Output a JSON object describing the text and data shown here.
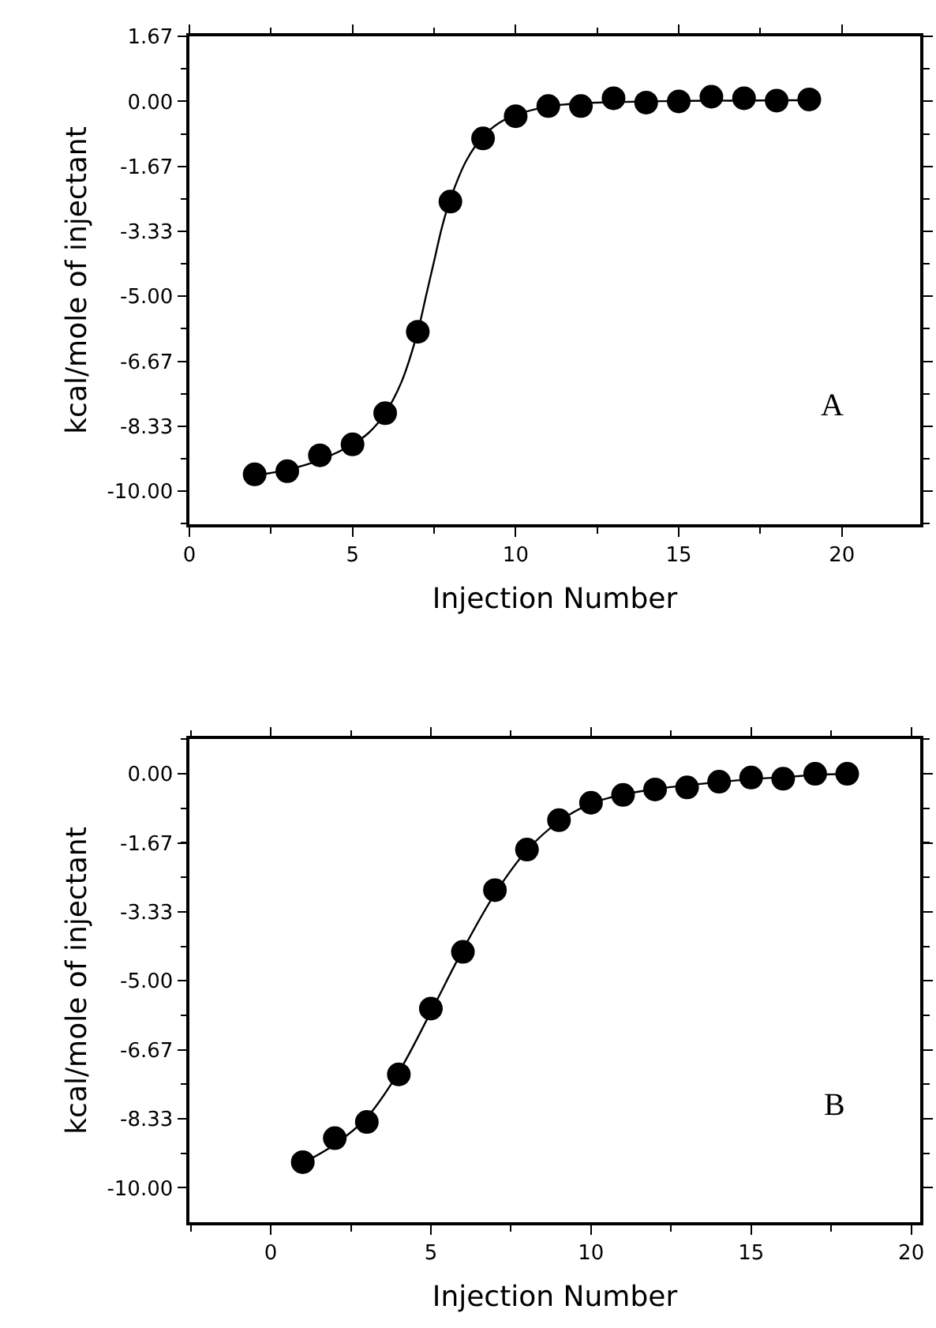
{
  "chart_data": [
    {
      "type": "scatter",
      "xlabel": "Injection Number",
      "ylabel": "kcal/mole of injectant",
      "annotations": [
        "A"
      ],
      "line_style": "solid",
      "x": [
        2,
        3,
        4,
        5,
        6,
        7,
        8,
        9,
        10,
        11,
        12,
        13,
        14,
        15,
        16,
        17,
        18,
        19
      ],
      "series": [
        {
          "color": "#000000",
          "marker": "circle",
          "values": [
            -9.57,
            -9.49,
            -9.08,
            -8.8,
            -8.0,
            -5.91,
            -2.57,
            -0.95,
            -0.38,
            -0.12,
            -0.12,
            0.08,
            -0.03,
            0,
            0.12,
            0.08,
            0.02,
            0.05
          ]
        },
        {
          "type": "line",
          "marker": "none",
          "color": "#000000",
          "x": [
            2,
            3,
            4,
            5,
            5.5,
            6,
            6.5,
            7,
            7.25,
            7.5,
            7.75,
            8,
            8.5,
            9,
            9.5,
            10,
            11,
            12,
            13,
            14,
            15,
            16,
            17,
            18,
            19
          ],
          "values": [
            -9.6,
            -9.45,
            -9.2,
            -8.8,
            -8.5,
            -8.0,
            -7.2,
            -5.9,
            -5.0,
            -4.1,
            -3.2,
            -2.5,
            -1.5,
            -0.9,
            -0.55,
            -0.35,
            -0.13,
            -0.05,
            -0.02,
            0,
            0.01,
            0.02,
            0.02,
            0.03,
            0.03
          ]
        }
      ],
      "xlim": [
        0,
        22.4
      ],
      "xticks": [
        0,
        5,
        10,
        15,
        20
      ],
      "ylim": [
        -10.85,
        1.67
      ],
      "yticks": [
        {
          "value": -10,
          "label": "-10.00"
        },
        -8.33,
        -6.67,
        {
          "value": -5,
          "label": "-5.00"
        },
        -3.33,
        -1.67,
        {
          "value": 0,
          "label": "0.00"
        },
        1.67
      ]
    },
    {
      "type": "scatter",
      "xlabel": "Injection Number",
      "ylabel": "kcal/mole of injectant",
      "annotations": [
        "B"
      ],
      "line_style": "solid",
      "x": [
        1,
        2,
        3,
        4,
        5,
        6,
        7,
        8,
        9,
        10,
        11,
        12,
        13,
        14,
        15,
        16,
        17,
        18
      ],
      "series": [
        {
          "color": "#000000",
          "marker": "circle",
          "values": [
            -9.38,
            -8.8,
            -8.41,
            -7.26,
            -5.67,
            -4.3,
            -2.81,
            -1.83,
            -1.12,
            -0.7,
            -0.51,
            -0.38,
            -0.33,
            -0.19,
            -0.09,
            -0.12,
            0,
            0
          ]
        },
        {
          "type": "line",
          "marker": "none",
          "color": "#000000",
          "x": [
            1,
            2,
            3,
            4,
            5,
            6,
            7,
            8,
            9,
            10,
            11,
            12,
            13,
            14,
            15,
            16,
            17,
            18
          ],
          "values": [
            -9.4,
            -8.95,
            -8.3,
            -7.2,
            -5.75,
            -4.25,
            -2.9,
            -1.85,
            -1.15,
            -0.72,
            -0.5,
            -0.37,
            -0.28,
            -0.2,
            -0.13,
            -0.08,
            -0.03,
            0
          ]
        }
      ],
      "xlim": [
        -2.54,
        20.28
      ],
      "xticks": [
        0,
        5,
        10,
        15,
        20
      ],
      "ylim": [
        -10.83,
        0.84
      ],
      "yticks": [
        {
          "value": -10,
          "label": "-10.00"
        },
        -8.33,
        -6.67,
        {
          "value": -5,
          "label": "-5.00"
        },
        -3.33,
        -1.67,
        {
          "value": 0,
          "label": "0.00"
        }
      ]
    }
  ]
}
